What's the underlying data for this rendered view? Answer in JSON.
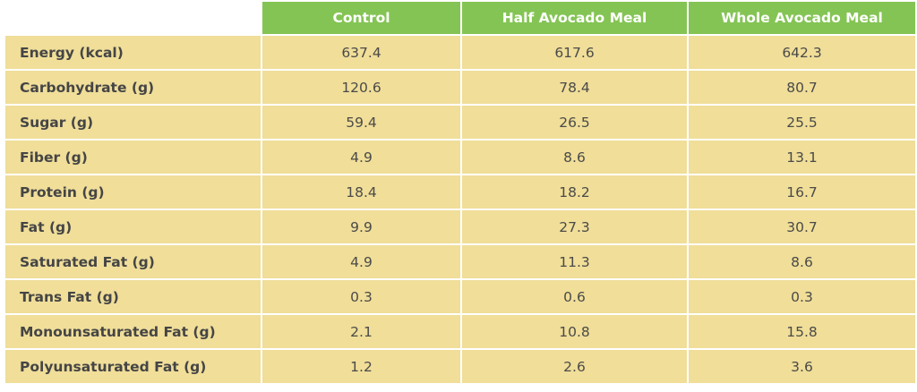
{
  "chart_data": {
    "type": "table",
    "columns": [
      "",
      "Control",
      "Half Avocado Meal",
      "Whole Avocado Meal"
    ],
    "rows": [
      {
        "label": "Energy (kcal)",
        "values": [
          "637.4",
          "617.6",
          "642.3"
        ]
      },
      {
        "label": "Carbohydrate (g)",
        "values": [
          "120.6",
          "78.4",
          "80.7"
        ]
      },
      {
        "label": "Sugar (g)",
        "values": [
          "59.4",
          "26.5",
          "25.5"
        ]
      },
      {
        "label": "Fiber (g)",
        "values": [
          "4.9",
          "8.6",
          "13.1"
        ]
      },
      {
        "label": "Protein (g)",
        "values": [
          "18.4",
          "18.2",
          "16.7"
        ]
      },
      {
        "label": "Fat (g)",
        "values": [
          "9.9",
          "27.3",
          "30.7"
        ]
      },
      {
        "label": "Saturated Fat (g)",
        "values": [
          "4.9",
          "11.3",
          "8.6"
        ]
      },
      {
        "label": "Trans Fat (g)",
        "values": [
          "0.3",
          "0.6",
          "0.3"
        ]
      },
      {
        "label": "Monounsaturated Fat (g)",
        "values": [
          "2.1",
          "10.8",
          "15.8"
        ]
      },
      {
        "label": "Polyunsaturated Fat (g)",
        "values": [
          "1.2",
          "2.6",
          "3.6"
        ]
      }
    ],
    "colors": {
      "header": "#84c454",
      "cell": "#f0de99",
      "header_text": "#ffffff",
      "cell_text": "#4a4a48"
    }
  }
}
